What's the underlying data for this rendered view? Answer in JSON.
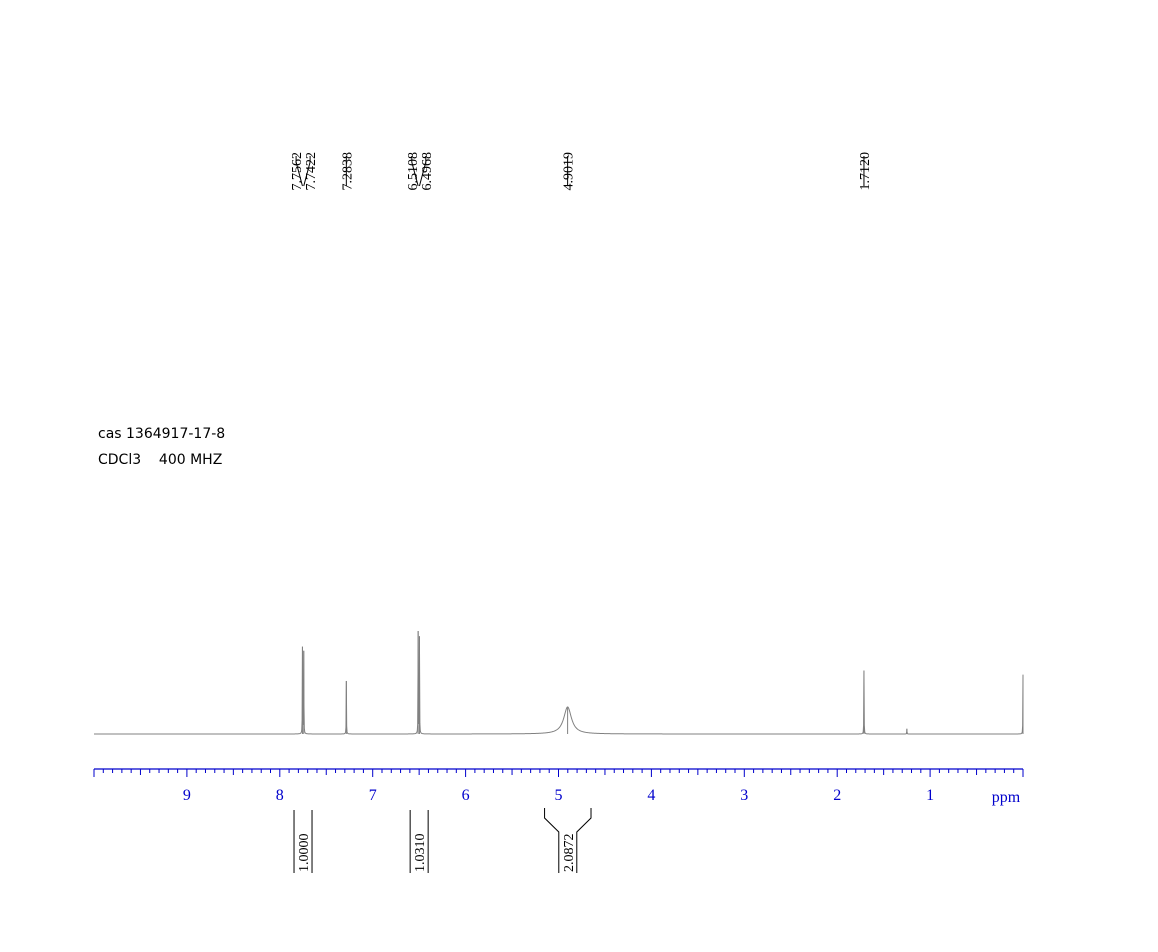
{
  "sample": {
    "cas": "cas 1364917-17-8",
    "conditions": "CDCl3    400 MHZ"
  },
  "colors": {
    "axis": "#0000cc",
    "spectrum": "#808080",
    "annotation": "#000000"
  },
  "chart_data": {
    "type": "line",
    "title": "",
    "xlabel": "ppm",
    "ylabel": "",
    "x_reversed": true,
    "xlim": [
      10.0,
      0.0
    ],
    "x_ticks": [
      9,
      8,
      7,
      6,
      5,
      4,
      3,
      2,
      1
    ],
    "minor_tick_step": 0.1,
    "grid": false,
    "peaks": [
      {
        "shift": 7.7562,
        "rel_height": 0.84
      },
      {
        "shift": 7.7422,
        "rel_height": 0.8
      },
      {
        "shift": 7.2838,
        "rel_height": 0.51
      },
      {
        "shift": 6.5108,
        "rel_height": 0.99
      },
      {
        "shift": 6.4968,
        "rel_height": 0.94
      },
      {
        "shift": 4.9019,
        "rel_height": 0.26,
        "broad": true
      },
      {
        "shift": 1.712,
        "rel_height": 0.61
      },
      {
        "shift": 1.25,
        "rel_height": 0.05
      },
      {
        "shift": 0.0,
        "rel_height": 0.57
      }
    ],
    "peak_label_groups": [
      {
        "labels": [
          "7.7562",
          "7.7422"
        ],
        "shifts": [
          7.7562,
          7.7422
        ]
      },
      {
        "labels": [
          "7.2838"
        ],
        "shifts": [
          7.2838
        ]
      },
      {
        "labels": [
          "6.5108",
          "6.4968"
        ],
        "shifts": [
          6.5108,
          6.4968
        ]
      },
      {
        "labels": [
          "4.9019"
        ],
        "shifts": [
          4.9019
        ]
      },
      {
        "labels": [
          "1.7120"
        ],
        "shifts": [
          1.712
        ]
      }
    ],
    "integrals": [
      {
        "label": "1.0000",
        "from": 7.85,
        "to": 7.65,
        "value": 1.0
      },
      {
        "label": "1.0310",
        "from": 6.6,
        "to": 6.4,
        "value": 1.031
      },
      {
        "label": "2.0872",
        "from": 5.15,
        "to": 4.65,
        "value": 2.0872
      }
    ]
  }
}
